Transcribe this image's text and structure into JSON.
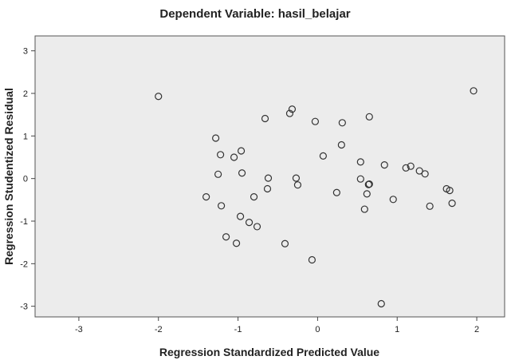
{
  "chart_data": {
    "type": "scatter",
    "title": "Dependent Variable: hasil_belajar",
    "xlabel": "Regression Standardized Predicted Value",
    "ylabel": "Regression Studentized Residual",
    "xlim": [
      -3.55,
      2.35
    ],
    "ylim": [
      -3.25,
      3.35
    ],
    "xticks": [
      -3,
      -2,
      -1,
      0,
      1,
      2
    ],
    "yticks": [
      -3,
      -2,
      -1,
      0,
      1,
      2,
      3
    ],
    "xtick_labels": [
      "-3",
      "-2",
      "-1",
      "0",
      "1",
      "2"
    ],
    "ytick_labels": [
      "-3",
      "-2",
      "-1",
      "0",
      "1",
      "2",
      "3"
    ],
    "grid": false,
    "legend": "none",
    "colors": {
      "plot_bg": "#ececec",
      "marker_stroke": "#333333",
      "axis": "#444444"
    },
    "points": [
      {
        "x": -2.0,
        "y": 1.93
      },
      {
        "x": 1.96,
        "y": 2.06
      },
      {
        "x": -0.35,
        "y": 1.53
      },
      {
        "x": -0.32,
        "y": 1.63
      },
      {
        "x": -0.66,
        "y": 1.41
      },
      {
        "x": -0.03,
        "y": 1.34
      },
      {
        "x": 0.31,
        "y": 1.31
      },
      {
        "x": 0.65,
        "y": 1.45
      },
      {
        "x": -1.28,
        "y": 0.95
      },
      {
        "x": -0.96,
        "y": 0.65
      },
      {
        "x": -1.22,
        "y": 0.56
      },
      {
        "x": -1.05,
        "y": 0.5
      },
      {
        "x": 0.07,
        "y": 0.53
      },
      {
        "x": 0.3,
        "y": 0.79
      },
      {
        "x": 0.54,
        "y": 0.39
      },
      {
        "x": 0.84,
        "y": 0.32
      },
      {
        "x": 1.11,
        "y": 0.25
      },
      {
        "x": 1.17,
        "y": 0.29
      },
      {
        "x": 1.28,
        "y": 0.18
      },
      {
        "x": 1.35,
        "y": 0.11
      },
      {
        "x": -1.25,
        "y": 0.1
      },
      {
        "x": -0.95,
        "y": 0.13
      },
      {
        "x": -0.62,
        "y": 0.01
      },
      {
        "x": -0.27,
        "y": 0.01
      },
      {
        "x": -0.25,
        "y": -0.15
      },
      {
        "x": 0.54,
        "y": -0.01
      },
      {
        "x": 0.64,
        "y": -0.14
      },
      {
        "x": 0.65,
        "y": -0.13
      },
      {
        "x": -0.63,
        "y": -0.24
      },
      {
        "x": -1.4,
        "y": -0.43
      },
      {
        "x": -0.8,
        "y": -0.43
      },
      {
        "x": -1.21,
        "y": -0.64
      },
      {
        "x": 0.24,
        "y": -0.33
      },
      {
        "x": 0.62,
        "y": -0.36
      },
      {
        "x": 0.95,
        "y": -0.49
      },
      {
        "x": 0.59,
        "y": -0.72
      },
      {
        "x": 1.62,
        "y": -0.24
      },
      {
        "x": 1.66,
        "y": -0.28
      },
      {
        "x": 1.41,
        "y": -0.65
      },
      {
        "x": 1.69,
        "y": -0.58
      },
      {
        "x": -0.97,
        "y": -0.89
      },
      {
        "x": -0.86,
        "y": -1.03
      },
      {
        "x": -0.76,
        "y": -1.13
      },
      {
        "x": -1.15,
        "y": -1.37
      },
      {
        "x": -1.02,
        "y": -1.52
      },
      {
        "x": -0.41,
        "y": -1.53
      },
      {
        "x": -0.07,
        "y": -1.91
      },
      {
        "x": 0.8,
        "y": -2.94
      }
    ]
  }
}
